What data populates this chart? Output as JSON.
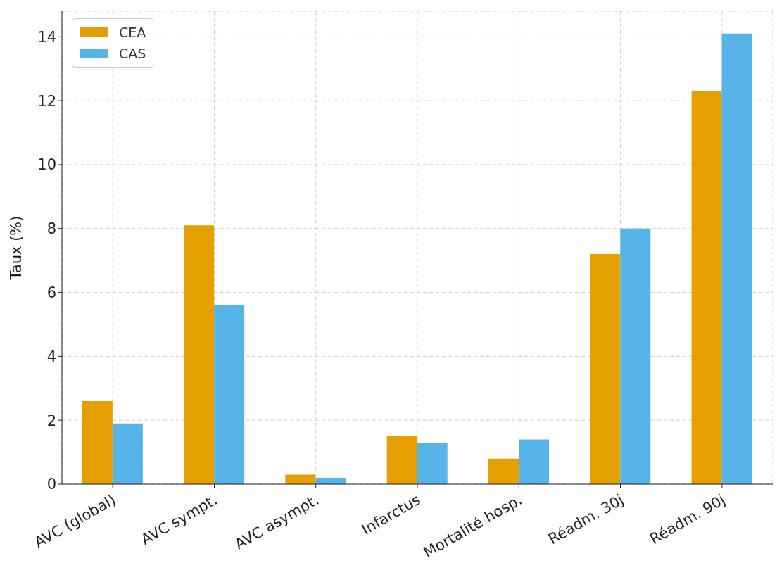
{
  "chart_data": {
    "type": "bar",
    "ylabel": "Taux (%)",
    "categories": [
      "AVC (global)",
      "AVC sympt.",
      "AVC asympt.",
      "Infarctus",
      "Mortalité hosp.",
      "Réadm. 30j",
      "Réadm. 90j"
    ],
    "series": [
      {
        "name": "CEA",
        "color": "#e69f00",
        "values": [
          2.6,
          8.1,
          0.3,
          1.5,
          0.8,
          7.2,
          12.3
        ]
      },
      {
        "name": "CAS",
        "color": "#56b4e9",
        "values": [
          1.9,
          5.6,
          0.2,
          1.3,
          1.4,
          8.0,
          14.1
        ]
      }
    ],
    "ylim": [
      0,
      14.8
    ],
    "yticks": [
      0,
      2,
      4,
      6,
      8,
      10,
      12,
      14
    ],
    "grid": true,
    "legend": "top left"
  }
}
